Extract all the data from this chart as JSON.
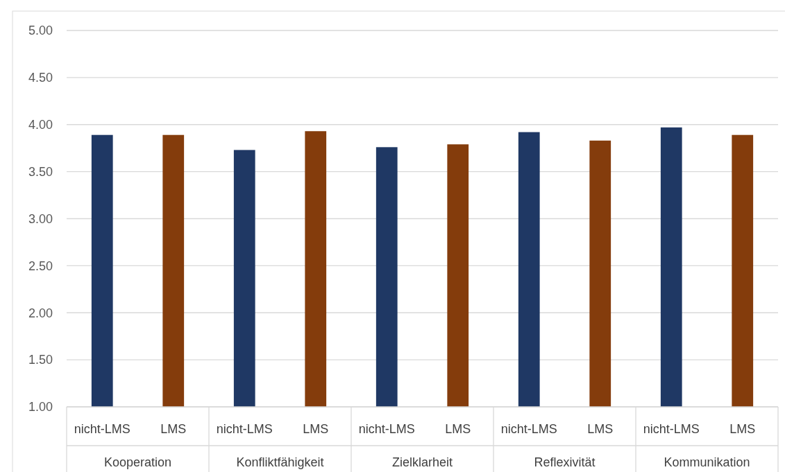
{
  "chart_data": {
    "type": "bar",
    "categories": [
      "nicht-LMS",
      "LMS",
      "nicht-LMS",
      "LMS",
      "nicht-LMS",
      "LMS",
      "nicht-LMS",
      "LMS",
      "nicht-LMS",
      "LMS"
    ],
    "values": [
      3.89,
      3.89,
      3.73,
      3.93,
      3.76,
      3.79,
      3.92,
      3.83,
      3.97,
      3.89
    ],
    "colors": [
      "#1f3864",
      "#843c0c",
      "#1f3864",
      "#843c0c",
      "#1f3864",
      "#843c0c",
      "#1f3864",
      "#843c0c",
      "#1f3864",
      "#843c0c"
    ],
    "annotations": [
      "Kooperation",
      "Konfliktfähigkeit",
      "Zielklarheit",
      "Reflexivität",
      "Kommunikation"
    ],
    "ylim": [
      1,
      5
    ],
    "yticks": [
      {
        "value": 1,
        "label": "1.00"
      },
      {
        "value": 1.5,
        "label": "1.50"
      },
      {
        "value": 2,
        "label": "2.00"
      },
      {
        "value": 2.5,
        "label": "2.50"
      },
      {
        "value": 3,
        "label": "3.00"
      },
      {
        "value": 3.5,
        "label": "3.50"
      },
      {
        "value": 4,
        "label": "4.00"
      },
      {
        "value": 4.5,
        "label": "4.50"
      },
      {
        "value": 5,
        "label": "5.00"
      }
    ],
    "grid": "y"
  }
}
